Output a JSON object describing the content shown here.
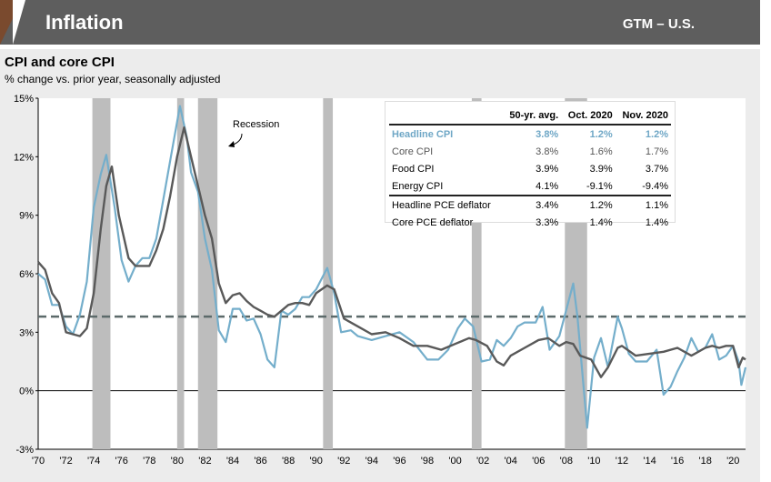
{
  "header": {
    "title": "Inflation",
    "right_label": "GTM – U.S."
  },
  "chart_data": {
    "type": "line",
    "title": "CPI and core CPI",
    "subtitle": "% change vs. prior year, seasonally adjusted",
    "x_tick_labels": [
      "'70",
      "'72",
      "'74",
      "'76",
      "'78",
      "'80",
      "'82",
      "'84",
      "'86",
      "'88",
      "'90",
      "'92",
      "'94",
      "'96",
      "'98",
      "'00",
      "'02",
      "'04",
      "'06",
      "'08",
      "'10",
      "'12",
      "'14",
      "'16",
      "'18",
      "'20"
    ],
    "y_tick_labels": [
      "15%",
      "12%",
      "9%",
      "6%",
      "3%",
      "0%",
      "-3%"
    ],
    "xlim": [
      1970,
      2020.9
    ],
    "ylim": [
      -3,
      15
    ],
    "annotation": "Recession",
    "recessions": [
      [
        1973.9,
        1975.2
      ],
      [
        1980.0,
        1980.5
      ],
      [
        1981.5,
        1982.9
      ],
      [
        1990.5,
        1991.2
      ],
      [
        2001.2,
        2001.9
      ],
      [
        2007.9,
        2009.5
      ]
    ],
    "reference_line": {
      "value": 3.8
    },
    "colors": {
      "headline": "#74aecb",
      "core": "#595959",
      "recession": "#bdbdbd"
    },
    "series": [
      {
        "key": "headline",
        "x": [
          1970,
          1970.5,
          1971,
          1971.5,
          1972,
          1972.5,
          1973,
          1973.5,
          1974,
          1974.5,
          1974.9,
          1975.5,
          1976,
          1976.5,
          1977,
          1977.5,
          1978,
          1978.5,
          1979,
          1979.5,
          1980.2,
          1980.7,
          1981,
          1981.5,
          1982,
          1982.5,
          1983,
          1983.5,
          1984,
          1984.5,
          1985,
          1985.5,
          1986,
          1986.5,
          1987,
          1987.5,
          1988,
          1988.5,
          1989,
          1989.5,
          1990,
          1990.8,
          1991.3,
          1991.8,
          1992.5,
          1993,
          1994,
          1995,
          1996,
          1997,
          1998,
          1998.8,
          1999.5,
          2000.2,
          2000.7,
          2001.3,
          2001.9,
          2002.5,
          2003,
          2003.5,
          2004,
          2004.5,
          2005,
          2005.8,
          2006.3,
          2006.8,
          2007.5,
          2008.5,
          2008.8,
          2009.5,
          2010,
          2010.5,
          2011,
          2011.7,
          2012,
          2012.5,
          2013,
          2013.8,
          2014.5,
          2015,
          2015.5,
          2016,
          2016.5,
          2017,
          2017.5,
          2018,
          2018.5,
          2019,
          2019.5,
          2020,
          2020.4,
          2020.6,
          2020.9
        ],
        "values": [
          6.0,
          5.7,
          4.4,
          4.4,
          3.3,
          2.9,
          3.9,
          5.6,
          9.4,
          11.1,
          12.1,
          9.4,
          6.7,
          5.6,
          6.4,
          6.8,
          6.8,
          7.8,
          9.8,
          11.8,
          14.6,
          13.0,
          11.2,
          10.2,
          7.8,
          6.2,
          3.1,
          2.5,
          4.2,
          4.2,
          3.6,
          3.7,
          2.9,
          1.6,
          1.2,
          4.1,
          3.9,
          4.2,
          4.8,
          4.8,
          5.2,
          6.3,
          5.0,
          3.0,
          3.1,
          2.8,
          2.6,
          2.8,
          3.0,
          2.5,
          1.6,
          1.6,
          2.1,
          3.2,
          3.7,
          3.3,
          1.5,
          1.6,
          2.6,
          2.3,
          2.7,
          3.3,
          3.5,
          3.5,
          4.3,
          2.1,
          2.8,
          5.5,
          3.8,
          -1.9,
          1.7,
          2.7,
          1.2,
          3.8,
          3.2,
          1.9,
          1.5,
          1.5,
          2.1,
          -0.2,
          0.2,
          1.0,
          1.7,
          2.7,
          2.0,
          2.2,
          2.9,
          1.6,
          1.8,
          2.3,
          1.5,
          0.3,
          1.2
        ]
      },
      {
        "key": "core",
        "x": [
          1970,
          1970.5,
          1971,
          1971.5,
          1972,
          1972.5,
          1973,
          1973.5,
          1974,
          1974.5,
          1974.9,
          1975.3,
          1975.8,
          1976.5,
          1977,
          1977.5,
          1978,
          1978.5,
          1979,
          1979.5,
          1980,
          1980.5,
          1981,
          1981.5,
          1982,
          1982.5,
          1983,
          1983.5,
          1984,
          1984.5,
          1985,
          1985.5,
          1986,
          1986.5,
          1987,
          1987.5,
          1988,
          1988.5,
          1989,
          1989.5,
          1990,
          1990.8,
          1991.3,
          1992,
          1993,
          1994,
          1995,
          1996,
          1997,
          1998,
          1999,
          2000,
          2001,
          2001.5,
          2002.3,
          2003,
          2003.5,
          2004,
          2005,
          2006,
          2006.7,
          2007.5,
          2008,
          2008.5,
          2009,
          2009.8,
          2010.5,
          2011,
          2011.7,
          2012,
          2013,
          2014,
          2015,
          2016,
          2017,
          2018,
          2018.5,
          2019,
          2019.5,
          2020,
          2020.4,
          2020.7,
          2020.9
        ],
        "values": [
          6.6,
          6.2,
          5.0,
          4.5,
          3.0,
          2.9,
          2.8,
          3.2,
          5.0,
          8.3,
          10.5,
          11.5,
          9.0,
          6.8,
          6.4,
          6.4,
          6.4,
          7.2,
          8.3,
          10.0,
          12.0,
          13.5,
          12.0,
          10.5,
          9.0,
          7.8,
          5.5,
          4.5,
          4.9,
          5.0,
          4.6,
          4.3,
          4.1,
          3.9,
          3.8,
          4.1,
          4.4,
          4.5,
          4.5,
          4.4,
          5.0,
          5.4,
          5.2,
          3.7,
          3.3,
          2.9,
          3.0,
          2.7,
          2.3,
          2.3,
          2.1,
          2.4,
          2.7,
          2.6,
          2.3,
          1.5,
          1.3,
          1.8,
          2.2,
          2.6,
          2.7,
          2.3,
          2.5,
          2.4,
          1.8,
          1.6,
          0.7,
          1.2,
          2.2,
          2.3,
          1.8,
          1.9,
          2.0,
          2.2,
          1.8,
          2.2,
          2.3,
          2.2,
          2.3,
          2.3,
          1.2,
          1.7,
          1.6
        ]
      }
    ]
  },
  "stats_table": {
    "columns": [
      "",
      "50-yr. avg.",
      "Oct. 2020",
      "Nov. 2020"
    ],
    "rows": [
      [
        "Headline CPI",
        "3.8%",
        "1.2%",
        "1.2%"
      ],
      [
        "Core CPI",
        "3.8%",
        "1.6%",
        "1.7%"
      ],
      [
        "Food CPI",
        "3.9%",
        "3.9%",
        "3.7%"
      ],
      [
        "Energy CPI",
        "4.1%",
        "-9.1%",
        "-9.4%"
      ],
      [
        "Headline PCE deflator",
        "3.4%",
        "1.2%",
        "1.1%"
      ],
      [
        "Core PCE deflator",
        "3.3%",
        "1.4%",
        "1.4%"
      ]
    ]
  }
}
